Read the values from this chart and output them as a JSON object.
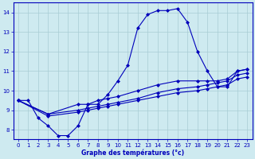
{
  "xlabel": "Graphe des températures (°c)",
  "background_color": "#ceeaf0",
  "line_color": "#0000bb",
  "grid_color": "#a8ccd4",
  "xlim": [
    -0.5,
    23.5
  ],
  "ylim": [
    7.5,
    14.5
  ],
  "yticks": [
    8,
    9,
    10,
    11,
    12,
    13,
    14
  ],
  "xticks": [
    0,
    1,
    2,
    3,
    4,
    5,
    6,
    7,
    8,
    9,
    10,
    11,
    12,
    13,
    14,
    15,
    16,
    17,
    18,
    19,
    20,
    21,
    22,
    23
  ],
  "series1": [
    [
      0,
      9.5
    ],
    [
      1,
      9.5
    ],
    [
      2,
      8.6
    ],
    [
      3,
      8.2
    ],
    [
      4,
      7.7
    ],
    [
      5,
      7.7
    ],
    [
      6,
      8.2
    ],
    [
      7,
      9.3
    ],
    [
      8,
      9.3
    ],
    [
      9,
      9.8
    ],
    [
      10,
      10.5
    ],
    [
      11,
      11.3
    ],
    [
      12,
      13.2
    ],
    [
      13,
      13.9
    ],
    [
      14,
      14.1
    ],
    [
      15,
      14.1
    ],
    [
      16,
      14.2
    ],
    [
      17,
      13.5
    ],
    [
      18,
      12.0
    ],
    [
      19,
      11.0
    ],
    [
      20,
      10.2
    ],
    [
      21,
      10.2
    ],
    [
      22,
      11.0
    ],
    [
      23,
      11.1
    ]
  ],
  "series2": [
    [
      0,
      9.5
    ],
    [
      3,
      8.8
    ],
    [
      6,
      9.3
    ],
    [
      7,
      9.3
    ],
    [
      8,
      9.5
    ],
    [
      9,
      9.6
    ],
    [
      10,
      9.7
    ],
    [
      12,
      10.0
    ],
    [
      14,
      10.3
    ],
    [
      16,
      10.5
    ],
    [
      18,
      10.5
    ],
    [
      19,
      10.5
    ],
    [
      20,
      10.5
    ],
    [
      21,
      10.6
    ],
    [
      22,
      11.0
    ],
    [
      23,
      11.1
    ]
  ],
  "series3": [
    [
      0,
      9.5
    ],
    [
      3,
      8.8
    ],
    [
      6,
      9.0
    ],
    [
      7,
      9.1
    ],
    [
      8,
      9.2
    ],
    [
      9,
      9.3
    ],
    [
      10,
      9.4
    ],
    [
      12,
      9.6
    ],
    [
      14,
      9.9
    ],
    [
      16,
      10.1
    ],
    [
      18,
      10.2
    ],
    [
      19,
      10.3
    ],
    [
      20,
      10.4
    ],
    [
      21,
      10.5
    ],
    [
      22,
      10.8
    ],
    [
      23,
      10.9
    ]
  ],
  "series4": [
    [
      0,
      9.5
    ],
    [
      3,
      8.7
    ],
    [
      6,
      8.9
    ],
    [
      7,
      9.0
    ],
    [
      8,
      9.1
    ],
    [
      9,
      9.2
    ],
    [
      10,
      9.3
    ],
    [
      12,
      9.5
    ],
    [
      14,
      9.7
    ],
    [
      16,
      9.9
    ],
    [
      18,
      10.0
    ],
    [
      19,
      10.1
    ],
    [
      20,
      10.2
    ],
    [
      21,
      10.3
    ],
    [
      22,
      10.6
    ],
    [
      23,
      10.7
    ]
  ]
}
